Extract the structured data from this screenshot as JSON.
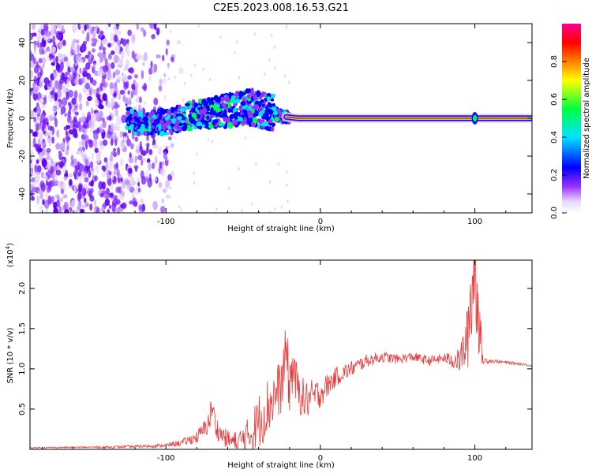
{
  "title": "C2E5.2023.008.16.53.G21",
  "chart_data": [
    {
      "type": "heatmap",
      "xlabel": "Height of straight line (km)",
      "ylabel": "Frequency (Hz)",
      "xlim": [
        -188,
        137
      ],
      "ylim": [
        -50,
        50
      ],
      "x_ticks": [
        -100,
        0,
        100
      ],
      "y_ticks": [
        -40,
        -20,
        0,
        20,
        40
      ],
      "colorbar": {
        "label": "Normalized spectral amplitude",
        "range": [
          0.0,
          1.0
        ],
        "ticks": [
          0.0,
          0.2,
          0.4,
          0.6,
          0.8
        ],
        "colors": [
          "#ffffff",
          "#e8d8ff",
          "#9a30ff",
          "#0000ff",
          "#00e5ff",
          "#00ff40",
          "#ffff00",
          "#ff8000",
          "#ff0000",
          "#ff0090"
        ]
      },
      "features": {
        "noise_region_x": [
          -188,
          -100
        ],
        "signal_track": [
          {
            "x": -120,
            "y": -3
          },
          {
            "x": -100,
            "y": -2
          },
          {
            "x": -80,
            "y": 2
          },
          {
            "x": -60,
            "y": 4
          },
          {
            "x": -45,
            "y": 6
          },
          {
            "x": -35,
            "y": 4
          },
          {
            "x": -25,
            "y": 1
          },
          {
            "x": -15,
            "y": 0
          },
          {
            "x": 0,
            "y": 0
          },
          {
            "x": 100,
            "y": 0
          },
          {
            "x": 137,
            "y": 0
          }
        ]
      }
    },
    {
      "type": "line",
      "xlabel": "Height of straight line (km)",
      "ylabel": "SNR (10 * v/v)",
      "y_multiplier": "(x10^4)",
      "xlim": [
        -188,
        137
      ],
      "ylim": [
        0,
        23500
      ],
      "x_ticks": [
        -100,
        0,
        100
      ],
      "y_ticks": [
        0.5,
        1.0,
        1.5,
        2.0
      ],
      "y_tick_labels": [
        "0.5",
        "1.0",
        "1.5",
        "2.0"
      ],
      "color": "#e83a3a",
      "series": [
        {
          "x": [
            -188,
            -160,
            -130,
            -110,
            -100,
            -90,
            -80,
            -75,
            -72,
            -70,
            -68,
            -65,
            -60,
            -55,
            -50,
            -45,
            -40,
            -35,
            -30,
            -25,
            -22,
            -20,
            -18,
            -15,
            -10,
            -5,
            0,
            10,
            20,
            30,
            40,
            50,
            60,
            70,
            80,
            90,
            95,
            98,
            100,
            102,
            105,
            110,
            120,
            130,
            137
          ],
          "y": [
            200,
            250,
            300,
            400,
            500,
            800,
            1500,
            2500,
            3500,
            5500,
            3000,
            2000,
            1200,
            800,
            1200,
            2000,
            3500,
            5000,
            6500,
            8000,
            12500,
            7500,
            10500,
            7500,
            6000,
            6500,
            7000,
            9000,
            10000,
            11000,
            11500,
            11200,
            11500,
            11000,
            11300,
            11000,
            13500,
            20000,
            23500,
            18000,
            11000,
            11000,
            10800,
            10600,
            10400
          ],
          "amp": [
            80,
            80,
            150,
            200,
            250,
            400,
            800,
            1200,
            1500,
            2000,
            1500,
            1200,
            1200,
            1500,
            1800,
            2500,
            3500,
            3800,
            3500,
            3500,
            3500,
            4000,
            3500,
            2800,
            2500,
            2200,
            1800,
            1200,
            1000,
            800,
            700,
            600,
            600,
            600,
            600,
            1500,
            4000,
            8000,
            8000,
            6000,
            600,
            250,
            200,
            150,
            150
          ]
        }
      ]
    }
  ]
}
